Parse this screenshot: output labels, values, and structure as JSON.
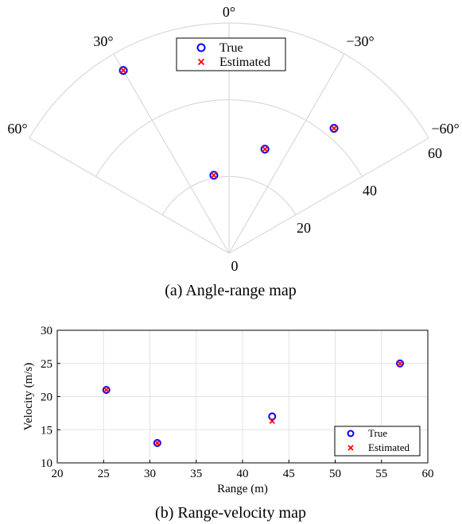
{
  "figure": {
    "caption_a": "(a) Angle-range map",
    "caption_b": "(b) Range-velocity map"
  },
  "chart_data": [
    {
      "type": "scatter",
      "subtype": "polar-sector",
      "theta_range_deg": [
        -60,
        60
      ],
      "r_range": [
        0,
        60
      ],
      "angle_ticks": [
        "60°",
        "30°",
        "0°",
        "−30°",
        "−60°"
      ],
      "angle_tick_values": [
        60,
        30,
        0,
        -30,
        -60
      ],
      "r_ticks": [
        "0",
        "20",
        "40",
        "60"
      ],
      "r_tick_values": [
        0,
        20,
        40,
        60
      ],
      "legend": {
        "position": "top-center",
        "entries": [
          "True",
          "Estimated"
        ]
      },
      "series": [
        {
          "name": "True",
          "marker": "circle",
          "color": "#0000ff",
          "points": [
            {
              "angle": 30,
              "range": 55
            },
            {
              "angle": 11,
              "range": 20.7
            },
            {
              "angle": -19,
              "range": 28.7
            },
            {
              "angle": -40,
              "range": 42.5
            }
          ]
        },
        {
          "name": "Estimated",
          "marker": "x",
          "color": "#ff0000",
          "points": [
            {
              "angle": 30,
              "range": 55
            },
            {
              "angle": 11,
              "range": 20.7
            },
            {
              "angle": -19,
              "range": 28.7
            },
            {
              "angle": -40,
              "range": 42.5
            }
          ]
        }
      ],
      "grid": true
    },
    {
      "type": "scatter",
      "xlabel": "Range (m)",
      "ylabel": "Velocity (m/s)",
      "xlim": [
        20,
        60
      ],
      "ylim": [
        10,
        30
      ],
      "xticks": [
        20,
        25,
        30,
        35,
        40,
        45,
        50,
        55,
        60
      ],
      "yticks": [
        10,
        15,
        20,
        25,
        30
      ],
      "legend": {
        "position": "bottom-right",
        "entries": [
          "True",
          "Estimated"
        ]
      },
      "series": [
        {
          "name": "True",
          "marker": "circle",
          "color": "#0000ff",
          "x": [
            25.3,
            30.8,
            43.2,
            57.0
          ],
          "y": [
            21.0,
            13.0,
            17.0,
            25.0
          ]
        },
        {
          "name": "Estimated",
          "marker": "x",
          "color": "#ff0000",
          "x": [
            25.3,
            30.8,
            43.2,
            57.0
          ],
          "y": [
            21.0,
            13.0,
            16.3,
            25.0
          ]
        }
      ],
      "grid": true
    }
  ]
}
